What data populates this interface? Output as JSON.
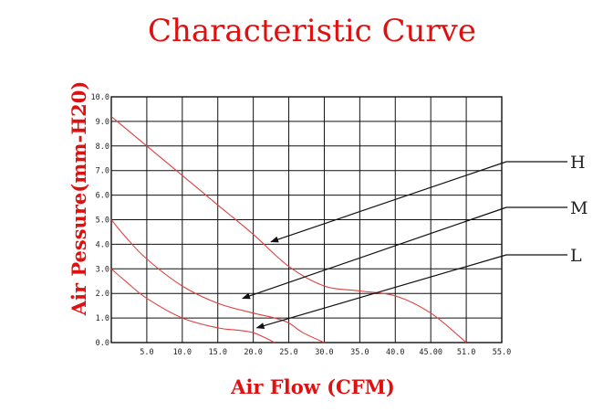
{
  "chart_data": {
    "type": "line",
    "title": "Characteristic Curve",
    "xlabel": "Air Flow (CFM)",
    "ylabel": "Air Pessure(mm-H20)",
    "xlim": [
      0,
      55
    ],
    "ylim": [
      0,
      10
    ],
    "x_ticks": [
      "5.0",
      "10.0",
      "15.0",
      "20.0",
      "25.0",
      "30.0",
      "35.0",
      "40.0",
      "45.00",
      "51.0",
      "55.0"
    ],
    "y_ticks": [
      "0.0",
      "1.0",
      "2.0",
      "3.0",
      "4.0",
      "5.0",
      "6.0",
      "7.0",
      "8.0",
      "9.0",
      "10.0"
    ],
    "grid": true,
    "series": [
      {
        "name": "H",
        "x": [
          0,
          5,
          10,
          15,
          20,
          25,
          30,
          35,
          40,
          45,
          50
        ],
        "y": [
          9.2,
          8.0,
          6.8,
          5.6,
          4.4,
          3.1,
          2.3,
          2.1,
          1.9,
          1.2,
          0.0
        ]
      },
      {
        "name": "M",
        "x": [
          0,
          2,
          5,
          10,
          15,
          20,
          23,
          25,
          27,
          30
        ],
        "y": [
          5.0,
          4.3,
          3.4,
          2.3,
          1.6,
          1.2,
          1.0,
          0.8,
          0.4,
          0.0
        ]
      },
      {
        "name": "L",
        "x": [
          0,
          2,
          5,
          10,
          15,
          18,
          20,
          22,
          23
        ],
        "y": [
          3.0,
          2.5,
          1.8,
          1.0,
          0.6,
          0.5,
          0.4,
          0.15,
          0.0
        ]
      }
    ],
    "annotations": [
      {
        "label": "H",
        "x": 22.5,
        "y": 4.1
      },
      {
        "label": "M",
        "x": 18.5,
        "y": 1.8
      },
      {
        "label": "L",
        "x": 20.5,
        "y": 0.6
      }
    ]
  }
}
